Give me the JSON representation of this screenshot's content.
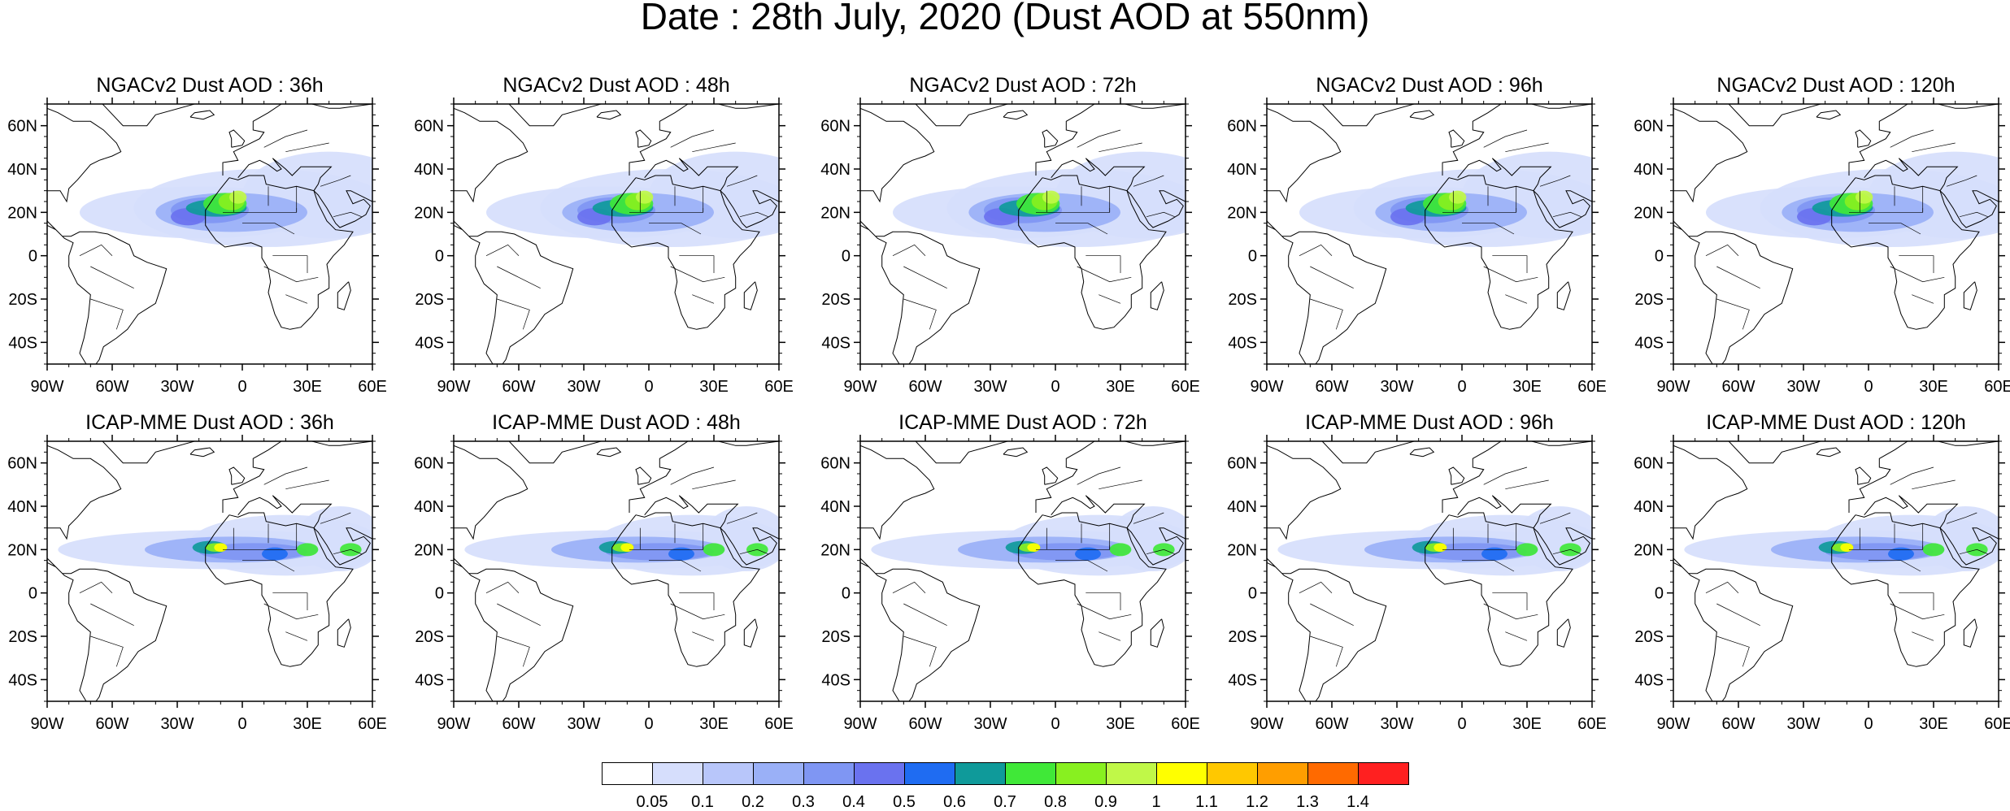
{
  "title": "Date : 28th July, 2020 (Dust AOD at 550nm)",
  "panels": [
    {
      "title": "NGACv2 Dust AOD : 36h",
      "model": "NGACv2",
      "lead": "36h"
    },
    {
      "title": "NGACv2 Dust AOD : 48h",
      "model": "NGACv2",
      "lead": "48h"
    },
    {
      "title": "NGACv2 Dust AOD : 72h",
      "model": "NGACv2",
      "lead": "72h"
    },
    {
      "title": "NGACv2 Dust AOD : 96h",
      "model": "NGACv2",
      "lead": "96h"
    },
    {
      "title": "NGACv2 Dust AOD : 120h",
      "model": "NGACv2",
      "lead": "120h"
    },
    {
      "title": "ICAP-MME Dust AOD : 36h",
      "model": "ICAP-MME",
      "lead": "36h"
    },
    {
      "title": "ICAP-MME Dust AOD : 48h",
      "model": "ICAP-MME",
      "lead": "48h"
    },
    {
      "title": "ICAP-MME Dust AOD : 72h",
      "model": "ICAP-MME",
      "lead": "72h"
    },
    {
      "title": "ICAP-MME Dust AOD : 96h",
      "model": "ICAP-MME",
      "lead": "96h"
    },
    {
      "title": "ICAP-MME Dust AOD : 120h",
      "model": "ICAP-MME",
      "lead": "120h"
    }
  ],
  "axes": {
    "lon_ticks": [
      "90W",
      "60W",
      "30W",
      "0",
      "30E",
      "60E"
    ],
    "lat_ticks": [
      "60N",
      "40N",
      "20N",
      "0",
      "20S",
      "40S"
    ],
    "lon_range": [
      -90,
      60
    ],
    "lat_range": [
      -50,
      70
    ]
  },
  "colorbar": {
    "labels": [
      "0.05",
      "0.1",
      "0.2",
      "0.3",
      "0.4",
      "0.5",
      "0.6",
      "0.7",
      "0.8",
      "0.9",
      "1",
      "1.1",
      "1.2",
      "1.3",
      "1.4"
    ],
    "colors": [
      "#ffffff",
      "#d6defc",
      "#b8c6fa",
      "#9ab0f7",
      "#7f96f3",
      "#6a72ef",
      "#1f6cf2",
      "#0f9a9a",
      "#40e838",
      "#88f020",
      "#c0f848",
      "#ffff00",
      "#ffc800",
      "#ff9e00",
      "#ff6a00",
      "#ff2020"
    ]
  }
}
